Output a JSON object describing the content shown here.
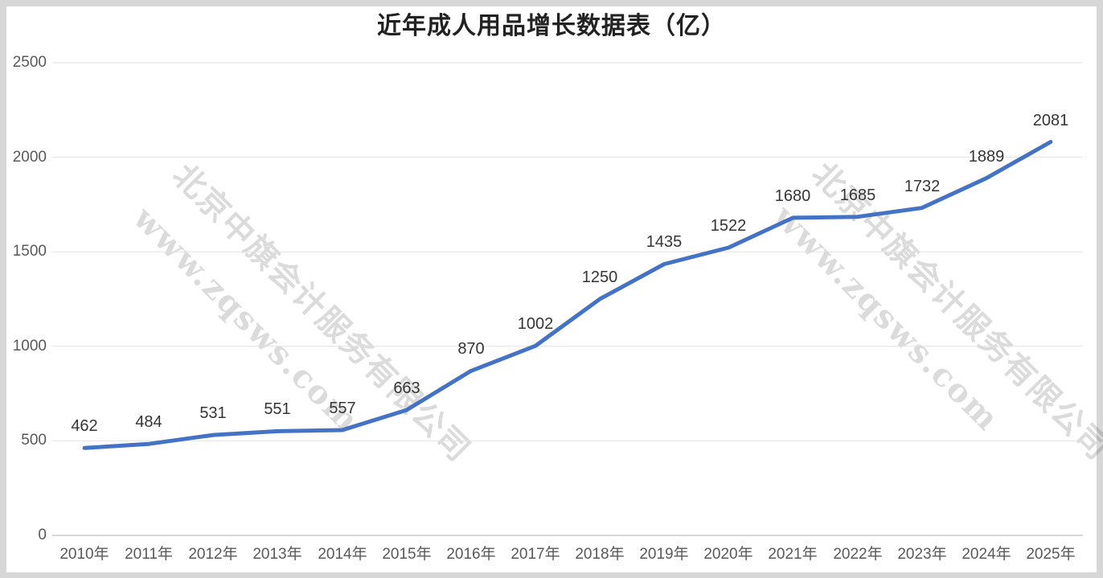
{
  "page": {
    "title": "近年成人用品增长数据表（亿）"
  },
  "watermark": {
    "company": "北京中旗会计服务有限公司",
    "url": "www.zqsws.com"
  },
  "colors": {
    "line": "#4472C4",
    "gridline": "#E2E2E2",
    "axis_line": "#D9D9D9",
    "title_text": "#222222",
    "tick_text": "#595959",
    "data_label_text": "#353535",
    "surround": "#D7D7D7",
    "surface": "#FFFFFF"
  },
  "chart_data": {
    "type": "line",
    "title": "近年成人用品增长数据表（亿）",
    "categories": [
      "2010年",
      "2011年",
      "2012年",
      "2013年",
      "2014年",
      "2015年",
      "2016年",
      "2017年",
      "2018年",
      "2019年",
      "2020年",
      "2021年",
      "2022年",
      "2023年",
      "2024年",
      "2025年"
    ],
    "series": [
      {
        "name": "增长数据",
        "values": [
          462,
          484,
          531,
          551,
          557,
          663,
          870,
          1002,
          1250,
          1435,
          1522,
          1680,
          1685,
          1732,
          1889,
          2081
        ]
      }
    ],
    "yticks": [
      0,
      500,
      1000,
      1500,
      2000,
      2500
    ],
    "ylim": [
      0,
      2500
    ],
    "xlabel": "",
    "ylabel": "",
    "grid": "horizontal",
    "legend": "none",
    "data_labels": "above-points"
  }
}
